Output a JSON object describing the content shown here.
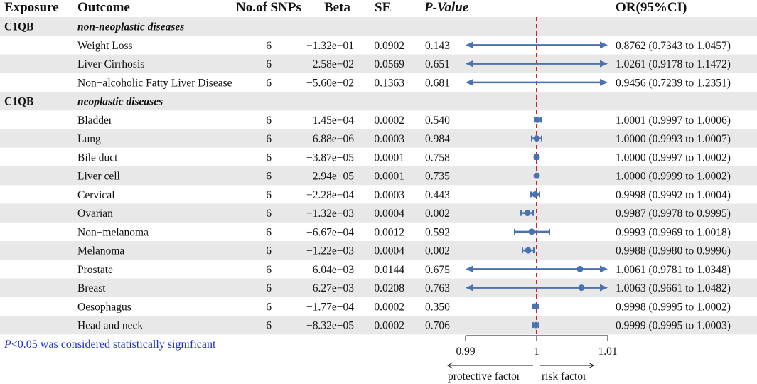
{
  "headers": {
    "exposure": "Exposure",
    "outcome": "Outcome",
    "nsnps": "No.of SNPs",
    "beta": "Beta",
    "se": "SE",
    "pvalue": "P-Value",
    "or": "OR(95%CI)"
  },
  "footnote": {
    "p_symbol": "P",
    "text": "<0.05 was considered statistically significant"
  },
  "chart_data": {
    "type": "forest",
    "x_axis": {
      "ticks": [
        "0.99",
        "1",
        "1.01"
      ],
      "min": 0.99,
      "max": 1.01,
      "reference": 1.0
    },
    "arrow_labels": {
      "left": "protective factor",
      "right": "risk factor"
    },
    "colors": {
      "estimate": "#4a72b0",
      "reference_line": "#d62020",
      "band": "#e8e8e8"
    },
    "groups": [
      {
        "exposure": "C1QB",
        "category": "non-neoplastic diseases",
        "rows": [
          {
            "outcome": "Weight Loss",
            "nsnps": "6",
            "beta": "−1.32e−01",
            "se": "0.0902",
            "p": "0.143",
            "or": 0.8762,
            "lo": 0.7343,
            "hi": 1.0457,
            "ci_text": "0.8762 (0.7343 to 1.0457)"
          },
          {
            "outcome": "Liver Cirrhosis",
            "nsnps": "6",
            "beta": "2.58e−02",
            "se": "0.0569",
            "p": "0.651",
            "or": 1.0261,
            "lo": 0.9178,
            "hi": 1.1472,
            "ci_text": "1.0261 (0.9178 to 1.1472)"
          },
          {
            "outcome": "Non−alcoholic Fatty Liver Disease",
            "nsnps": "6",
            "beta": "−5.60e−02",
            "se": "0.1363",
            "p": "0.681",
            "or": 0.9456,
            "lo": 0.7239,
            "hi": 1.2351,
            "ci_text": "0.9456 (0.7239 to 1.2351)"
          }
        ]
      },
      {
        "exposure": "C1QB",
        "category": "neoplastic diseases",
        "rows": [
          {
            "outcome": "Bladder",
            "nsnps": "6",
            "beta": "1.45e−04",
            "se": "0.0002",
            "p": "0.540",
            "or": 1.0001,
            "lo": 0.9997,
            "hi": 1.0006,
            "ci_text": "1.0001 (0.9997 to 1.0006)"
          },
          {
            "outcome": "Lung",
            "nsnps": "6",
            "beta": "6.88e−06",
            "se": "0.0003",
            "p": "0.984",
            "or": 1.0,
            "lo": 0.9993,
            "hi": 1.0007,
            "ci_text": "1.0000 (0.9993 to 1.0007)"
          },
          {
            "outcome": "Bile duct",
            "nsnps": "6",
            "beta": "−3.87e−05",
            "se": "0.0001",
            "p": "0.758",
            "or": 1.0,
            "lo": 0.9997,
            "hi": 1.0002,
            "ci_text": "1.0000 (0.9997 to 1.0002)"
          },
          {
            "outcome": "Liver cell",
            "nsnps": "6",
            "beta": "2.94e−05",
            "se": "0.0001",
            "p": "0.735",
            "or": 1.0,
            "lo": 0.9999,
            "hi": 1.0002,
            "ci_text": "1.0000 (0.9999 to 1.0002)"
          },
          {
            "outcome": "Cervical",
            "nsnps": "6",
            "beta": "−2.28e−04",
            "se": "0.0003",
            "p": "0.443",
            "or": 0.9998,
            "lo": 0.9992,
            "hi": 1.0004,
            "ci_text": "0.9998 (0.9992 to 1.0004)"
          },
          {
            "outcome": "Ovarian",
            "nsnps": "6",
            "beta": "−1.32e−03",
            "se": "0.0004",
            "p": "0.002",
            "or": 0.9987,
            "lo": 0.9978,
            "hi": 0.9995,
            "ci_text": "0.9987 (0.9978 to 0.9995)"
          },
          {
            "outcome": "Non−melanoma",
            "nsnps": "6",
            "beta": "−6.67e−04",
            "se": "0.0012",
            "p": "0.592",
            "or": 0.9993,
            "lo": 0.9969,
            "hi": 1.0018,
            "ci_text": "0.9993 (0.9969 to 1.0018)"
          },
          {
            "outcome": "Melanoma",
            "nsnps": "6",
            "beta": "−1.22e−03",
            "se": "0.0004",
            "p": "0.002",
            "or": 0.9988,
            "lo": 0.998,
            "hi": 0.9996,
            "ci_text": "0.9988 (0.9980 to 0.9996)"
          },
          {
            "outcome": "Prostate",
            "nsnps": "6",
            "beta": "6.04e−03",
            "se": "0.0144",
            "p": "0.675",
            "or": 1.0061,
            "lo": 0.9781,
            "hi": 1.0348,
            "ci_text": "1.0061 (0.9781 to 1.0348)"
          },
          {
            "outcome": "Breast",
            "nsnps": "6",
            "beta": "6.27e−03",
            "se": "0.0208",
            "p": "0.763",
            "or": 1.0063,
            "lo": 0.9661,
            "hi": 1.0482,
            "ci_text": "1.0063 (0.9661 to 1.0482)"
          },
          {
            "outcome": "Oesophagus",
            "nsnps": "6",
            "beta": "−1.77e−04",
            "se": "0.0002",
            "p": "0.350",
            "or": 0.9998,
            "lo": 0.9995,
            "hi": 1.0002,
            "ci_text": "0.9998 (0.9995 to 1.0002)"
          },
          {
            "outcome": "Head and neck",
            "nsnps": "6",
            "beta": "−8.32e−05",
            "se": "0.0002",
            "p": "0.706",
            "or": 0.9999,
            "lo": 0.9995,
            "hi": 1.0003,
            "ci_text": "0.9999 (0.9995 to 1.0003)"
          }
        ]
      }
    ]
  }
}
